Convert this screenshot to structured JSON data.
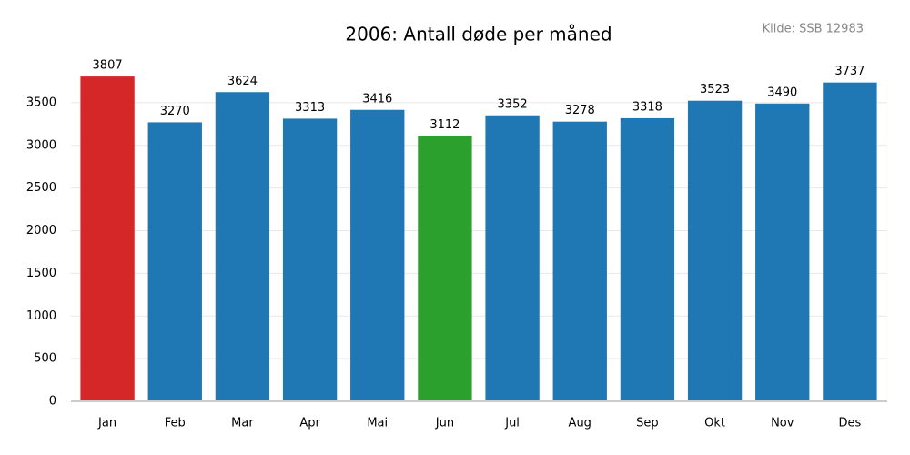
{
  "chart_data": {
    "type": "bar",
    "title": "2006: Antall døde per måned",
    "source": "Kilde: SSB 12983",
    "categories": [
      "Jan",
      "Feb",
      "Mar",
      "Apr",
      "Mai",
      "Jun",
      "Jul",
      "Aug",
      "Sep",
      "Okt",
      "Nov",
      "Des"
    ],
    "values": [
      3807,
      3270,
      3624,
      3313,
      3416,
      3112,
      3352,
      3278,
      3318,
      3523,
      3490,
      3737
    ],
    "colors": [
      "#d62728",
      "#1f77b4",
      "#1f77b4",
      "#1f77b4",
      "#1f77b4",
      "#2ca02c",
      "#1f77b4",
      "#1f77b4",
      "#1f77b4",
      "#1f77b4",
      "#1f77b4",
      "#1f77b4"
    ],
    "ylim": [
      0,
      4000
    ],
    "yticks": [
      0,
      500,
      1000,
      1500,
      2000,
      2500,
      3000,
      3500
    ],
    "grid": true
  }
}
